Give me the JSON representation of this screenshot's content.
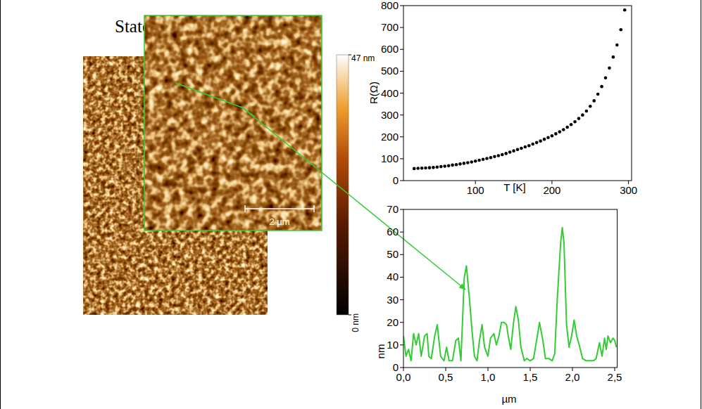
{
  "slide": {
    "title": "State of art"
  },
  "afm": {
    "scale_bar": "2 µm",
    "colorbar": {
      "range": [
        0,
        47
      ],
      "ticks": [
        {
          "value": 47,
          "label": "47 nm"
        },
        {
          "value": 0,
          "label": "0 nm"
        }
      ]
    }
  },
  "chart_data": [
    {
      "type": "scatter",
      "x_label": "T [K]",
      "y_label": "R(Ω)",
      "color": "#000000",
      "marker": "circle",
      "x": [
        20,
        25,
        30,
        35,
        40,
        45,
        50,
        55,
        60,
        65,
        70,
        75,
        80,
        85,
        90,
        95,
        100,
        105,
        110,
        115,
        120,
        125,
        130,
        135,
        140,
        145,
        150,
        155,
        160,
        165,
        170,
        175,
        180,
        185,
        190,
        195,
        200,
        205,
        210,
        215,
        220,
        225,
        230,
        235,
        240,
        245,
        250,
        255,
        260,
        265,
        270,
        275,
        280,
        285,
        290,
        295
      ],
      "values": [
        55,
        56,
        57,
        58,
        59,
        60,
        62,
        64,
        66,
        68,
        71,
        73,
        76,
        79,
        82,
        85,
        89,
        93,
        97,
        101,
        105,
        110,
        114,
        119,
        124,
        130,
        136,
        142,
        148,
        154,
        160,
        167,
        174,
        181,
        189,
        197,
        205,
        214,
        223,
        233,
        244,
        256,
        269,
        284,
        300,
        318,
        340,
        365,
        395,
        430,
        470,
        515,
        565,
        620,
        690,
        780
      ],
      "xlim": [
        6,
        304
      ],
      "ylim": [
        0,
        800
      ],
      "xticks": [
        100,
        200,
        300
      ],
      "yticks": [
        0,
        100,
        200,
        300,
        400,
        500,
        600,
        700,
        800
      ]
    },
    {
      "type": "line",
      "x_label": "µm",
      "y_label": "nm",
      "color": "#33cc33",
      "x": [
        0,
        0.03,
        0.06,
        0.09,
        0.12,
        0.15,
        0.18,
        0.21,
        0.25,
        0.28,
        0.3,
        0.33,
        0.37,
        0.4,
        0.44,
        0.48,
        0.51,
        0.54,
        0.58,
        0.62,
        0.65,
        0.68,
        0.72,
        0.745,
        0.78,
        0.81,
        0.84,
        0.87,
        0.9,
        0.93,
        0.96,
        1,
        1.03,
        1.07,
        1.1,
        1.13,
        1.16,
        1.19,
        1.22,
        1.24,
        1.27,
        1.3,
        1.33,
        1.36,
        1.39,
        1.43,
        1.46,
        1.5,
        1.54,
        1.58,
        1.61,
        1.65,
        1.68,
        1.72,
        1.76,
        1.79,
        1.82,
        1.86,
        1.88,
        1.9,
        1.93,
        1.96,
        1.99,
        2.02,
        2.05,
        2.08,
        2.12,
        2.16,
        2.2,
        2.25,
        2.28,
        2.32,
        2.35,
        2.38,
        2.4,
        2.42,
        2.45,
        2.48,
        2.5,
        2.52
      ],
      "values": [
        14,
        5,
        8,
        3,
        15,
        10,
        15,
        5,
        14,
        15,
        5,
        4,
        14,
        19,
        5,
        3,
        9,
        3,
        3,
        12,
        13,
        3,
        40,
        45,
        31,
        17,
        5,
        3,
        12,
        19,
        9,
        5,
        13,
        15,
        10,
        14,
        20,
        20,
        19,
        14,
        8,
        19,
        27,
        21,
        9,
        3,
        4,
        3,
        4,
        13,
        20,
        12,
        4,
        4,
        3,
        6,
        30,
        55,
        62,
        55,
        19,
        9,
        14,
        21,
        14,
        10,
        4,
        3,
        3,
        3,
        4,
        11,
        5,
        13,
        8,
        14,
        11,
        13,
        12,
        9
      ],
      "xlim": [
        0,
        2.53
      ],
      "ylim": [
        0,
        70
      ],
      "xticks": [
        {
          "value": 0,
          "label": "0,0"
        },
        {
          "value": 0.5,
          "label": "0,5"
        },
        {
          "value": 1,
          "label": "1,0"
        },
        {
          "value": 1.5,
          "label": "1,5"
        },
        {
          "value": 2,
          "label": "2,0"
        },
        {
          "value": 2.5,
          "label": "2,5"
        }
      ],
      "yticks": [
        0,
        10,
        20,
        30,
        40,
        50,
        60,
        70
      ]
    }
  ]
}
